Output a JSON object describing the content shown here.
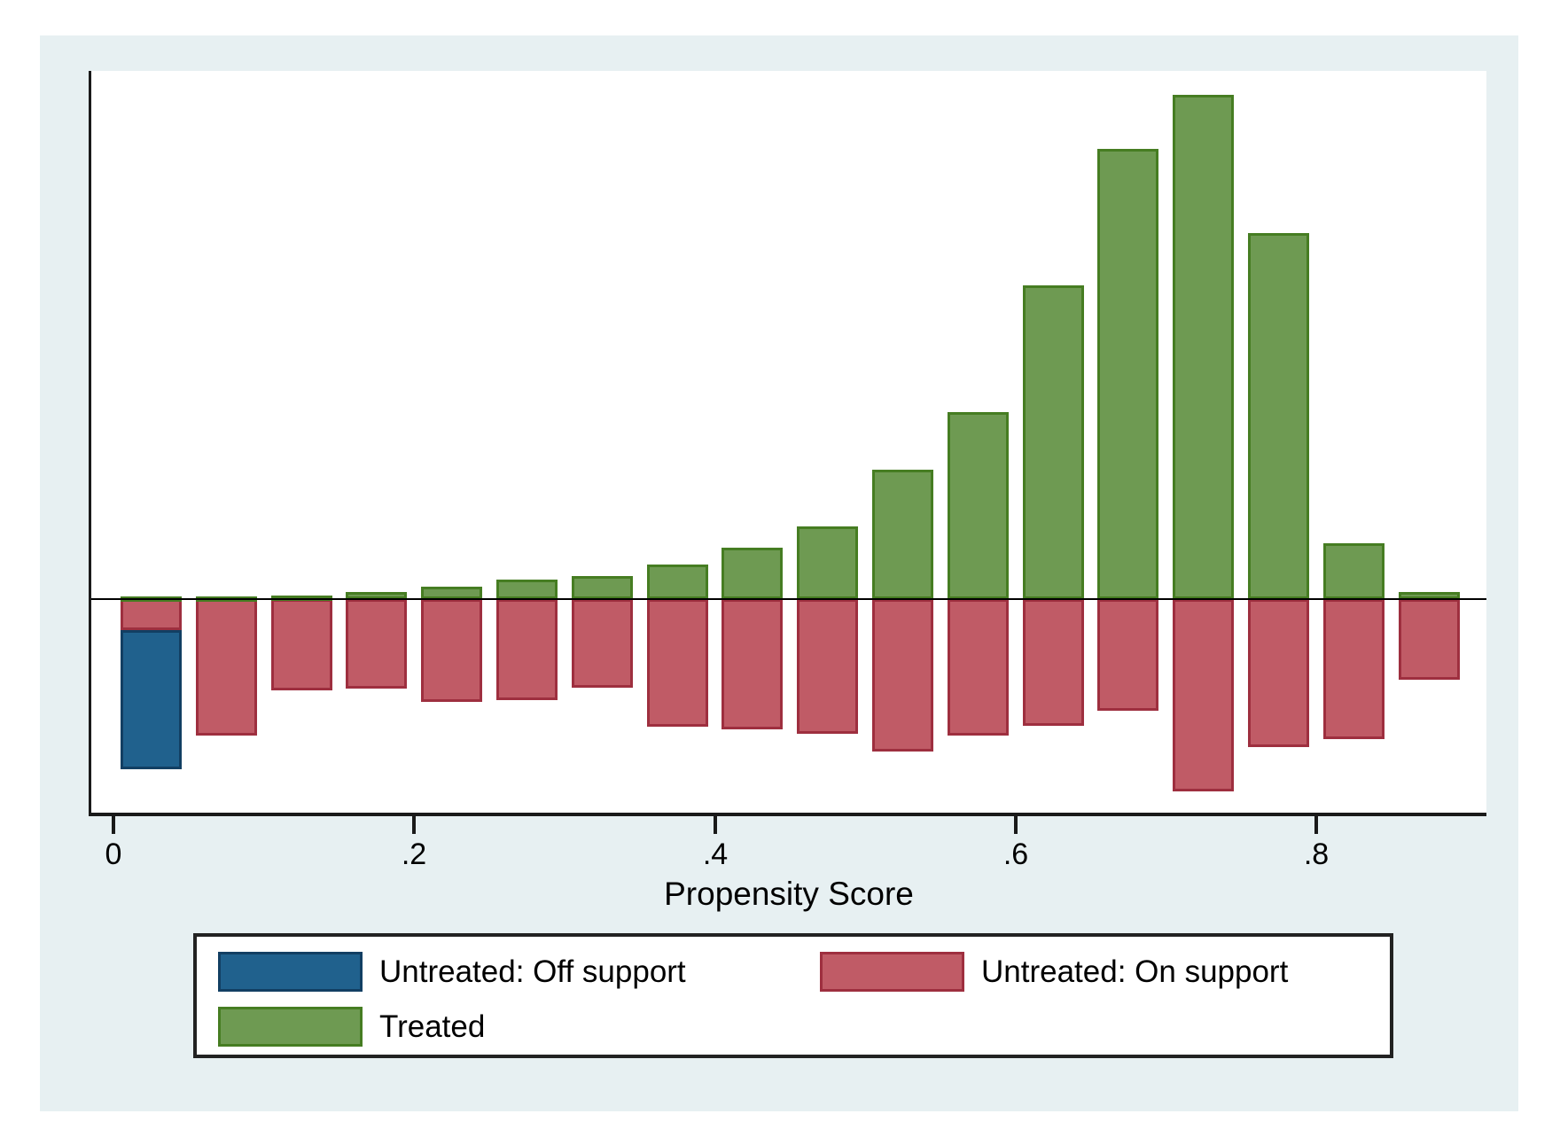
{
  "figure": {
    "xlabel": "Propensity Score",
    "legend": {
      "items": [
        {
          "key": "untreated_off",
          "label": "Untreated: Off support",
          "color": "#20618d",
          "border": "#123f63"
        },
        {
          "key": "untreated_on",
          "label": "Untreated: On support",
          "color": "#c05b66",
          "border": "#9e2f3f"
        },
        {
          "key": "treated",
          "label": "Treated",
          "color": "#6e9a52",
          "border": "#467d22"
        }
      ]
    },
    "colors": {
      "panel_background": "#e7f0f2",
      "plot_background": "#ffffff",
      "axis": "#1a1a1a",
      "text": "#000000"
    }
  },
  "chart_data": {
    "type": "bar",
    "subtype": "mirrored-histogram (Stata psgraph common-support plot)",
    "title": "",
    "xlabel": "Propensity Score",
    "ylabel": "",
    "x_range": [
      0,
      0.9
    ],
    "bin_width": 0.05,
    "bin_starts": [
      0.0,
      0.05,
      0.1,
      0.15,
      0.2,
      0.25,
      0.3,
      0.35,
      0.4,
      0.45,
      0.5,
      0.55,
      0.6,
      0.65,
      0.7,
      0.75,
      0.8,
      0.85
    ],
    "x_tick_values": [
      0,
      0.2,
      0.4,
      0.6,
      0.8
    ],
    "x_tick_labels": [
      "0",
      ".2",
      ".4",
      ".6",
      ".8"
    ],
    "y_axis_note": "no y tick labels shown; heights are relative frequency in arbitrary units (pixels of original figure)",
    "grid": false,
    "legend_position": "bottom",
    "series": [
      {
        "name": "Treated",
        "direction": "up",
        "color": "#6e9a52",
        "values": [
          3,
          3,
          4,
          8,
          14,
          22,
          26,
          39,
          58,
          82,
          146,
          211,
          354,
          508,
          569,
          413,
          63,
          8
        ]
      },
      {
        "name": "Untreated: On support",
        "direction": "down",
        "color": "#c05b66",
        "values": [
          35,
          154,
          103,
          101,
          116,
          114,
          100,
          144,
          147,
          152,
          172,
          154,
          143,
          126,
          217,
          167,
          158,
          91
        ]
      },
      {
        "name": "Untreated: Off support",
        "direction": "down",
        "stacked_below": "Untreated: On support",
        "color": "#20618d",
        "values": [
          157,
          0,
          0,
          0,
          0,
          0,
          0,
          0,
          0,
          0,
          0,
          0,
          0,
          0,
          0,
          0,
          0,
          0
        ]
      }
    ]
  }
}
